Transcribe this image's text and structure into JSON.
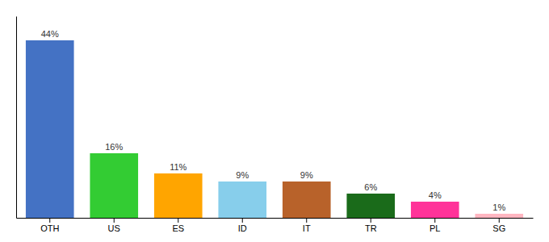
{
  "chart_data": {
    "type": "bar",
    "categories": [
      "OTH",
      "US",
      "ES",
      "ID",
      "IT",
      "TR",
      "PL",
      "SG"
    ],
    "values": [
      44,
      16,
      11,
      9,
      9,
      6,
      4,
      1
    ],
    "colors": [
      "#4472C4",
      "#33CC33",
      "#FFA500",
      "#87CEEB",
      "#B8622A",
      "#1A6B1A",
      "#FF3399",
      "#FFB6C1"
    ],
    "ylim": [
      0,
      50
    ],
    "data_labels": true,
    "value_labels": [
      "44%",
      "16%",
      "11%",
      "9%",
      "9%",
      "6%",
      "4%",
      "1%"
    ],
    "tick_labels": "x",
    "grid": false
  }
}
